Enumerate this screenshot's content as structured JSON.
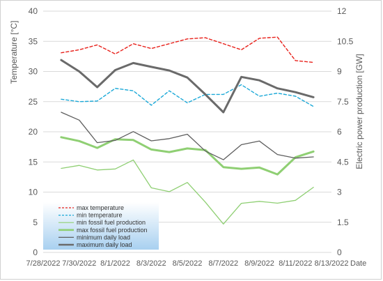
{
  "chart_data": {
    "type": "line",
    "xlabel": "Date",
    "ylabel_left": "Temperature [°C]",
    "ylabel_right": "Electric power production [GW]",
    "x_ticks": [
      "7/28/2022",
      "7/30/2022",
      "8/1/2022",
      "8/3/2022",
      "8/5/2022",
      "8/7/2022",
      "8/9/2022",
      "8/11/2022",
      "8/13/2022"
    ],
    "x_range": [
      "2022-07-28",
      "2022-08-13"
    ],
    "ylim_left": [
      0,
      40
    ],
    "yticks_left": [
      "0",
      "5",
      "10",
      "15",
      "20",
      "25",
      "30",
      "35",
      "40"
    ],
    "ylim_right": [
      0,
      12
    ],
    "yticks_right": [
      "0",
      "1.5",
      "3",
      "4.5",
      "6",
      "7.5",
      "9",
      "10.5",
      "12"
    ],
    "grid": true,
    "legend_position": "bottom-left",
    "x": [
      "2022-07-29",
      "2022-07-30",
      "2022-07-31",
      "2022-08-01",
      "2022-08-02",
      "2022-08-03",
      "2022-08-04",
      "2022-08-05",
      "2022-08-06",
      "2022-08-07",
      "2022-08-08",
      "2022-08-09",
      "2022-08-10",
      "2022-08-11",
      "2022-08-12"
    ],
    "series": [
      {
        "name": "max temperature",
        "axis": "left",
        "color": "#e8201a",
        "dash": "4,3",
        "width": 1.4,
        "values": [
          33.1,
          33.6,
          34.4,
          32.9,
          34.6,
          33.8,
          34.6,
          35.4,
          35.6,
          34.6,
          33.6,
          35.5,
          35.7,
          31.8,
          31.5
        ]
      },
      {
        "name": "min temperature",
        "axis": "left",
        "color": "#1ba9d8",
        "dash": "4,3",
        "width": 1.4,
        "values": [
          25.4,
          25.0,
          25.1,
          27.2,
          26.8,
          24.4,
          26.8,
          24.8,
          26.2,
          26.2,
          27.8,
          25.9,
          26.4,
          25.9,
          24.2
        ]
      },
      {
        "name": "min fossil fuel production",
        "axis": "right",
        "color": "#8fcf73",
        "dash": "",
        "width": 1.3,
        "values": [
          4.18,
          4.33,
          4.1,
          4.15,
          4.6,
          3.21,
          3.02,
          3.48,
          2.5,
          1.41,
          2.44,
          2.54,
          2.45,
          2.59,
          3.24
        ]
      },
      {
        "name": "max fossil fuel production",
        "axis": "right",
        "color": "#8fcf73",
        "dash": "",
        "width": 3,
        "values": [
          5.73,
          5.54,
          5.2,
          5.63,
          5.59,
          5.12,
          4.99,
          5.17,
          5.09,
          4.24,
          4.16,
          4.22,
          3.88,
          4.73,
          5.02
        ]
      },
      {
        "name": "minimum daily load",
        "axis": "right",
        "color": "#5e5e5e",
        "dash": "",
        "width": 1.3,
        "values": [
          6.97,
          6.58,
          5.46,
          5.57,
          6.01,
          5.55,
          5.66,
          5.88,
          5.04,
          4.61,
          5.36,
          5.54,
          4.87,
          4.69,
          4.75
        ]
      },
      {
        "name": "maximum daily load",
        "axis": "right",
        "color": "#6a6a6a",
        "dash": "",
        "width": 3,
        "values": [
          9.57,
          9.0,
          8.22,
          9.07,
          9.42,
          9.23,
          9.05,
          8.7,
          7.86,
          6.97,
          8.73,
          8.56,
          8.16,
          7.97,
          7.72
        ]
      }
    ]
  }
}
